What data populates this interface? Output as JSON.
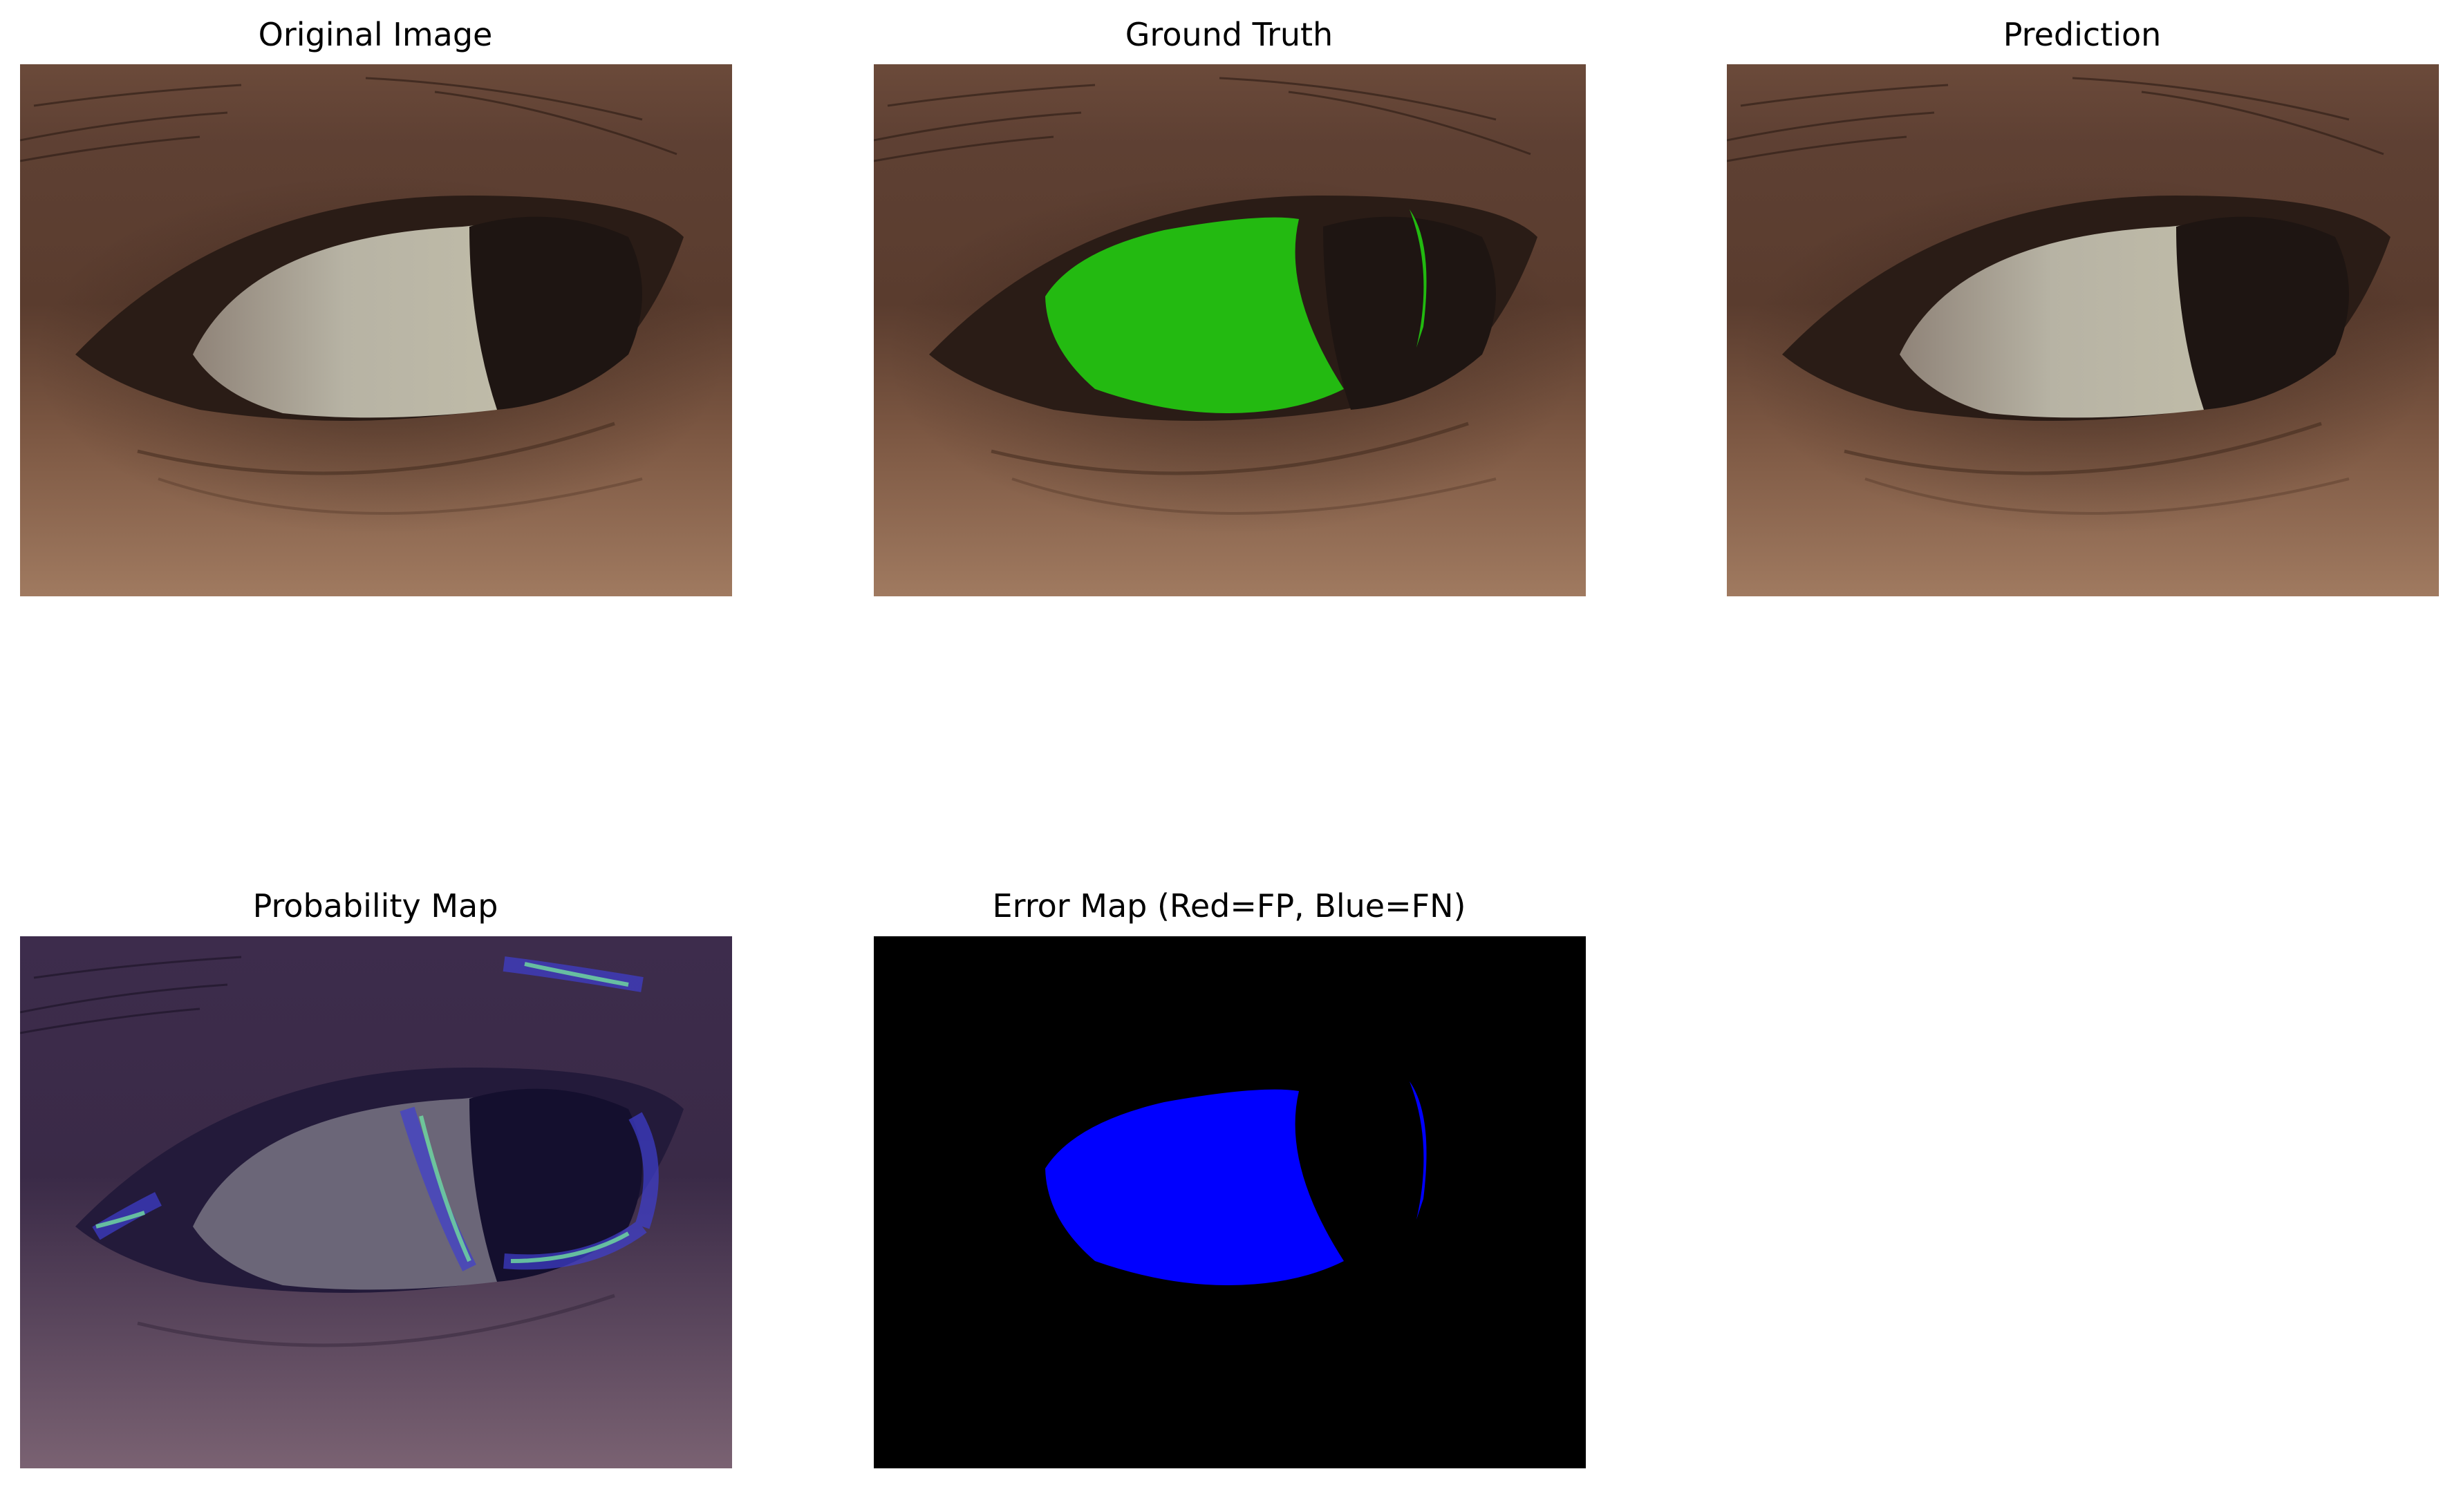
{
  "panels": {
    "original": {
      "title": "Original Image"
    },
    "ground_truth": {
      "title": "Ground Truth"
    },
    "prediction": {
      "title": "Prediction"
    },
    "probability": {
      "title": "Probability Map"
    },
    "error": {
      "title": "Error Map (Red=FP, Blue=FN)"
    }
  },
  "colors": {
    "ground_truth_overlay": "#22cc11",
    "false_negative": "#0000ff",
    "false_positive": "#ff0000",
    "error_background": "#000000"
  }
}
